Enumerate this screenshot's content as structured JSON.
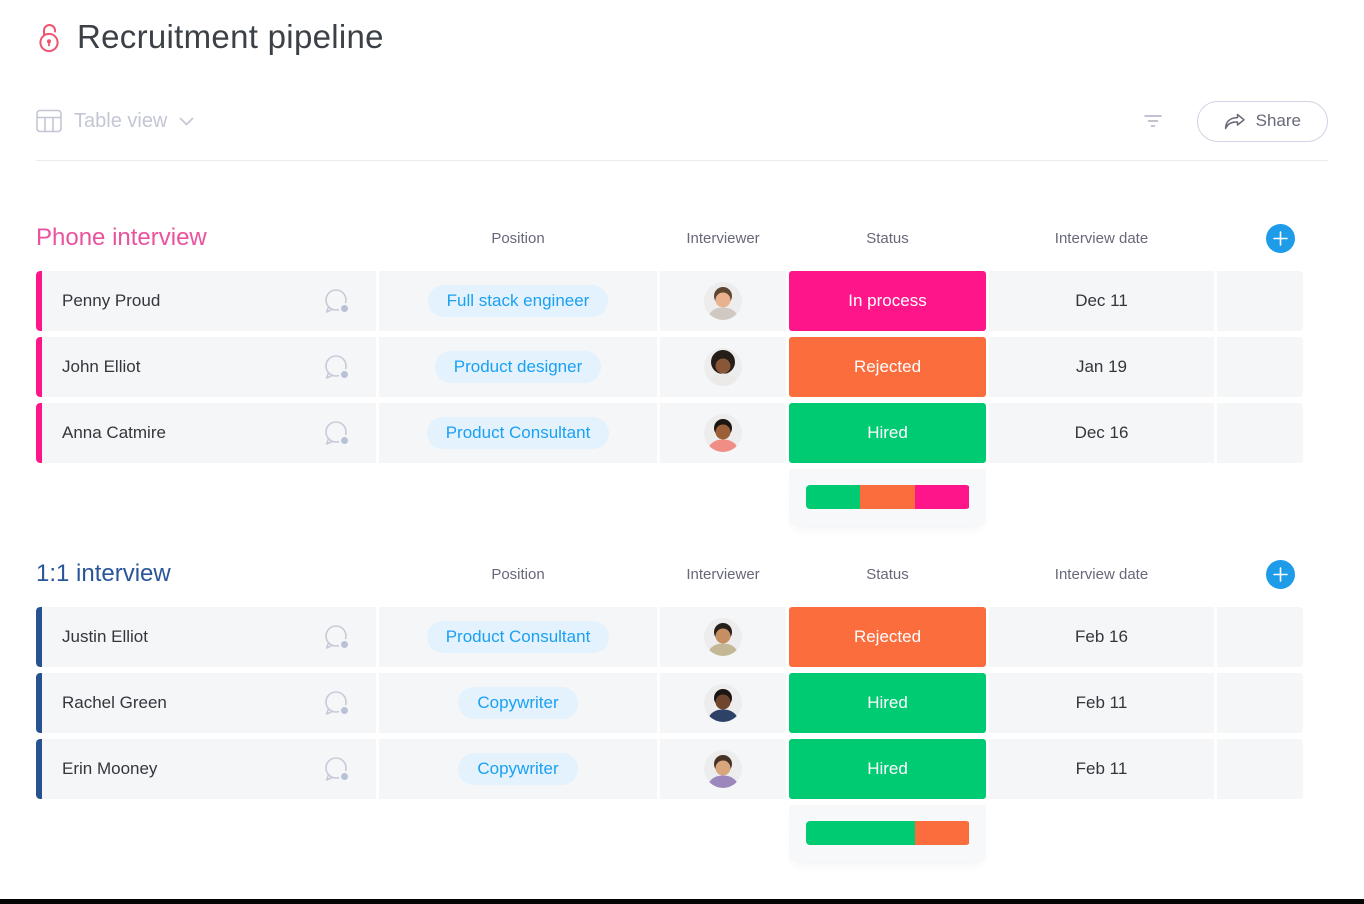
{
  "board": {
    "title": "Recruitment pipeline",
    "view_label": "Table view",
    "share_label": "Share"
  },
  "columns": [
    "Position",
    "Interviewer",
    "Status",
    "Interview date"
  ],
  "ui_colors": {
    "position_pill_bg": "#e3f2fd",
    "position_pill_text": "#1ba0f2",
    "add_button_blue": "#1e9be9",
    "row_bg": "#f5f6f8",
    "lock_pink": "#f0536f"
  },
  "groups": [
    {
      "name": "Phone interview",
      "title_color": "#e9529f",
      "bar_color": "#ff158a",
      "rows": [
        {
          "name": "Penny Proud",
          "position": "Full stack engineer",
          "status": "In process",
          "status_color": "#ff158a",
          "date": "Dec 11",
          "avatar": {
            "skin": "#e9b28e",
            "hair": "#5f4632",
            "shirt": "#cfc9c2"
          }
        },
        {
          "name": "John Elliot",
          "position": "Product designer",
          "status": "Rejected",
          "status_color": "#fb6d3d",
          "date": "Jan 19",
          "avatar": {
            "skin": "#8a5638",
            "hair": "#241d18",
            "shirt": "#eceae8",
            "style": "afro"
          }
        },
        {
          "name": "Anna Catmire",
          "position": "Product Consultant",
          "status": "Hired",
          "status_color": "#00ca72",
          "date": "Dec 16",
          "avatar": {
            "skin": "#9c6038",
            "hair": "#1d1712",
            "shirt": "#f08d85"
          }
        }
      ],
      "summary": [
        {
          "status": "Hired",
          "color": "#00ca72",
          "width": "33.4%"
        },
        {
          "status": "Rejected",
          "color": "#fb6d3d",
          "width": "33.3%"
        },
        {
          "status": "In process",
          "color": "#ff158a",
          "width": "33.3%"
        }
      ]
    },
    {
      "name": "1:1 interview",
      "title_color": "#2a5699",
      "bar_color": "#26538f",
      "rows": [
        {
          "name": "Justin Elliot",
          "position": "Product Consultant",
          "status": "Rejected",
          "status_color": "#fb6d3d",
          "date": "Feb 16",
          "avatar": {
            "skin": "#c68e63",
            "hair": "#26201b",
            "shirt": "#c3b795"
          }
        },
        {
          "name": "Rachel Green",
          "position": "Copywriter",
          "status": "Hired",
          "status_color": "#00ca72",
          "date": "Feb 11",
          "avatar": {
            "skin": "#6f452e",
            "hair": "#1b1613",
            "shirt": "#2e4166"
          }
        },
        {
          "name": "Erin Mooney",
          "position": "Copywriter",
          "status": "Hired",
          "status_color": "#00ca72",
          "date": "Feb 11",
          "avatar": {
            "skin": "#d8a57c",
            "hair": "#473226",
            "shirt": "#9c87bd"
          }
        }
      ],
      "summary": [
        {
          "status": "Hired",
          "color": "#00ca72",
          "width": "66.7%"
        },
        {
          "status": "Rejected",
          "color": "#fb6d3d",
          "width": "33.3%"
        }
      ]
    }
  ]
}
